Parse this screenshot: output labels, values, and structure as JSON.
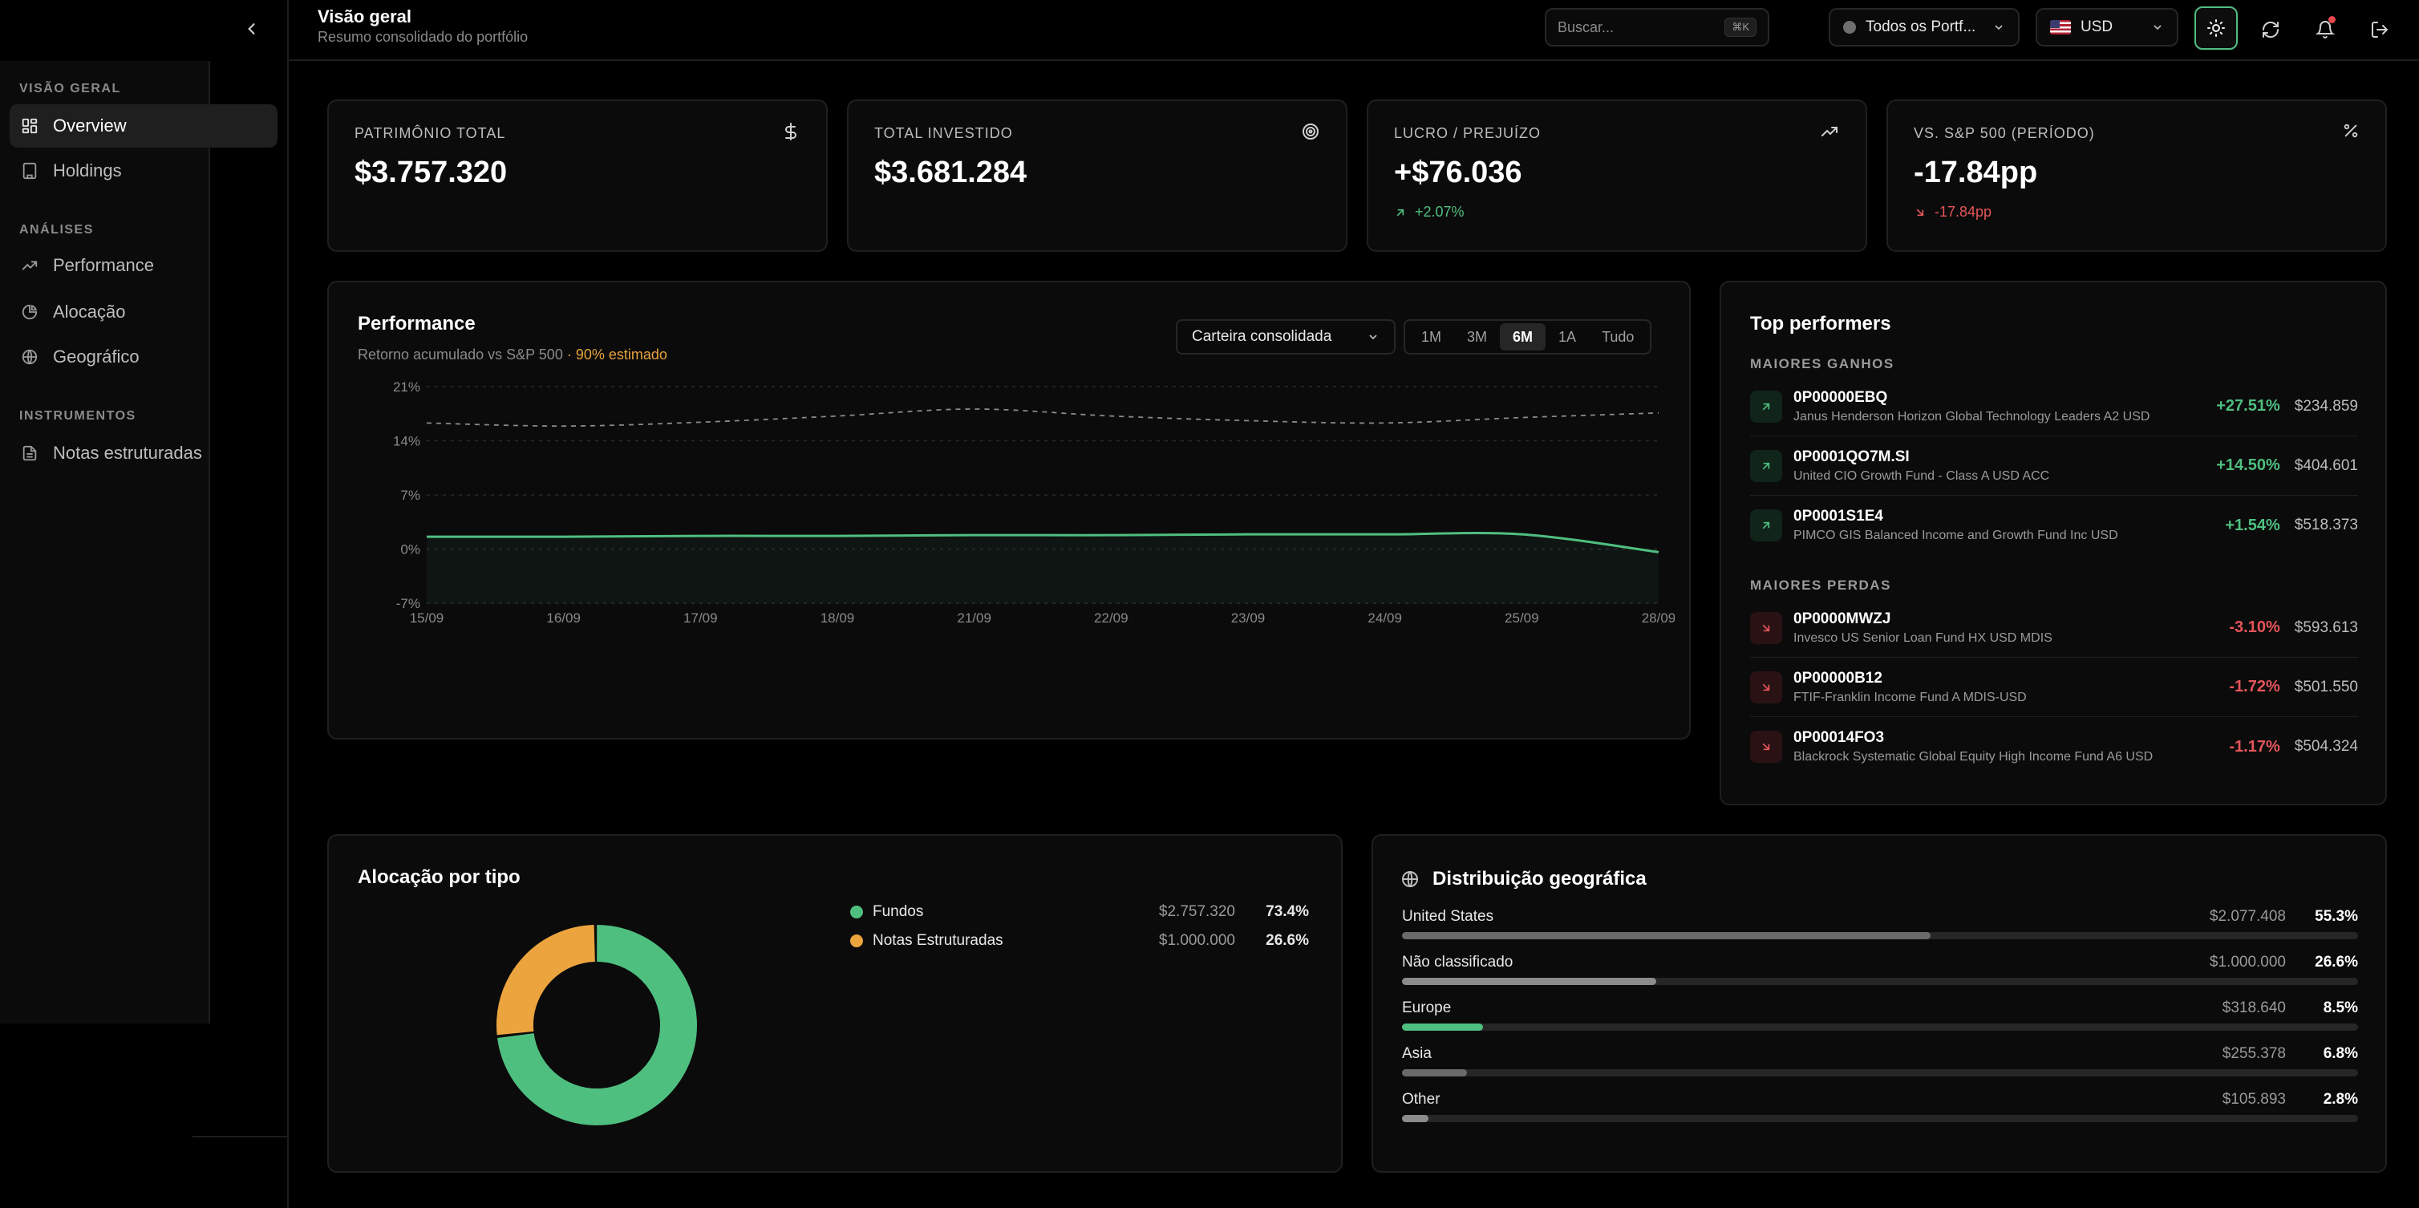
{
  "header": {
    "title": "Visão geral",
    "subtitle": "Resumo consolidado do portfólio",
    "search_placeholder": "Buscar...",
    "search_shortcut": "⌘K",
    "portfolio_select": "Todos os Portf...",
    "currency_select": "USD",
    "has_notification": true
  },
  "sidebar": {
    "sections": [
      {
        "label": "VISÃO GERAL",
        "items": [
          {
            "label": "Overview",
            "icon": "grid-icon",
            "active": true
          },
          {
            "label": "Holdings",
            "icon": "building-icon"
          }
        ]
      },
      {
        "label": "ANÁLISES",
        "items": [
          {
            "label": "Performance",
            "icon": "trend-icon"
          },
          {
            "label": "Alocação",
            "icon": "pie-icon"
          },
          {
            "label": "Geográfico",
            "icon": "globe-icon"
          }
        ]
      },
      {
        "label": "INSTRUMENTOS",
        "items": [
          {
            "label": "Notas estruturadas",
            "icon": "document-icon"
          }
        ]
      }
    ]
  },
  "kpis": [
    {
      "label": "PATRIMÔNIO TOTAL",
      "value": "$3.757.320",
      "icon": "dollar-icon"
    },
    {
      "label": "TOTAL INVESTIDO",
      "value": "$3.681.284",
      "icon": "target-icon"
    },
    {
      "label": "LUCRO / PREJUÍZO",
      "value": "+$76.036",
      "icon": "trend-up-icon",
      "delta": "+2.07%",
      "delta_dir": "up"
    },
    {
      "label": "VS. S&P 500 (PERÍODO)",
      "value": "-17.84pp",
      "icon": "percent-icon",
      "delta": "-17.84pp",
      "delta_dir": "down"
    }
  ],
  "performance": {
    "title": "Performance",
    "subtitle": "Retorno acumulado vs S&P 500",
    "estimate_note": "· 90% estimado",
    "portfolio_dropdown": "Carteira consolidada",
    "ranges": [
      "1M",
      "3M",
      "6M",
      "1A",
      "Tudo"
    ],
    "active_range": "6M"
  },
  "chart_data": {
    "type": "line",
    "x": [
      "15/09",
      "16/09",
      "17/09",
      "18/09",
      "21/09",
      "22/09",
      "23/09",
      "24/09",
      "25/09",
      "28/09"
    ],
    "ylim": [
      -7,
      21
    ],
    "yticks": [
      "21%",
      "14%",
      "7%",
      "0%",
      "-7%"
    ],
    "ytick_values": [
      21,
      14,
      7,
      0,
      -7
    ],
    "grid": true,
    "series": [
      {
        "values": [
          1.6,
          1.6,
          1.7,
          1.7,
          1.8,
          1.8,
          1.9,
          1.9,
          1.9,
          -0.4
        ],
        "color": "#4fbf80",
        "style": "solid"
      },
      {
        "values": [
          16.3,
          15.9,
          16.4,
          17.2,
          18.1,
          17.2,
          16.6,
          16.3,
          17.0,
          17.6
        ],
        "color": "#8a8a8a",
        "style": "dashed"
      }
    ]
  },
  "top_performers": {
    "title": "Top performers",
    "gains_label": "MAIORES GANHOS",
    "losses_label": "MAIORES PERDAS",
    "gains": [
      {
        "ticker": "0P00000EBQ",
        "name": "Janus Henderson Horizon Global Technology Leaders A2 USD",
        "change": "+27.51%",
        "value": "$234.859"
      },
      {
        "ticker": "0P0001QO7M.SI",
        "name": "United CIO Growth Fund - Class A USD ACC",
        "change": "+14.50%",
        "value": "$404.601"
      },
      {
        "ticker": "0P0001S1E4",
        "name": "PIMCO GIS Balanced Income and Growth Fund Inc USD",
        "change": "+1.54%",
        "value": "$518.373"
      }
    ],
    "losses": [
      {
        "ticker": "0P0000MWZJ",
        "name": "Invesco US Senior Loan Fund HX USD MDIS",
        "change": "-3.10%",
        "value": "$593.613"
      },
      {
        "ticker": "0P00000B12",
        "name": "FTIF-Franklin Income Fund A MDIS-USD",
        "change": "-1.72%",
        "value": "$501.550"
      },
      {
        "ticker": "0P00014FO3",
        "name": "Blackrock Systematic Global Equity High Income Fund A6 USD",
        "change": "-1.17%",
        "value": "$504.324"
      }
    ]
  },
  "allocation": {
    "title": "Alocação por tipo",
    "items": [
      {
        "label": "Fundos",
        "amount": "$2.757.320",
        "pct": "73.4%",
        "value": 73.4,
        "color": "#4fbf80"
      },
      {
        "label": "Notas Estruturadas",
        "amount": "$1.000.000",
        "pct": "26.6%",
        "value": 26.6,
        "color": "#eba43e"
      }
    ]
  },
  "geo": {
    "title": "Distribuição geográfica",
    "items": [
      {
        "label": "United States",
        "amount": "$2.077.408",
        "pct": "55.3%",
        "value": 55.3,
        "color": "#6a6a6a"
      },
      {
        "label": "Não classificado",
        "amount": "$1.000.000",
        "pct": "26.6%",
        "value": 26.6,
        "color": "#8c8c8c"
      },
      {
        "label": "Europe",
        "amount": "$318.640",
        "pct": "8.5%",
        "value": 8.5,
        "color": "#4fbf80"
      },
      {
        "label": "Asia",
        "amount": "$255.378",
        "pct": "6.8%",
        "value": 6.8,
        "color": "#6a6a6a"
      },
      {
        "label": "Other",
        "amount": "$105.893",
        "pct": "2.8%",
        "value": 2.8,
        "color": "#8c8c8c"
      }
    ]
  }
}
